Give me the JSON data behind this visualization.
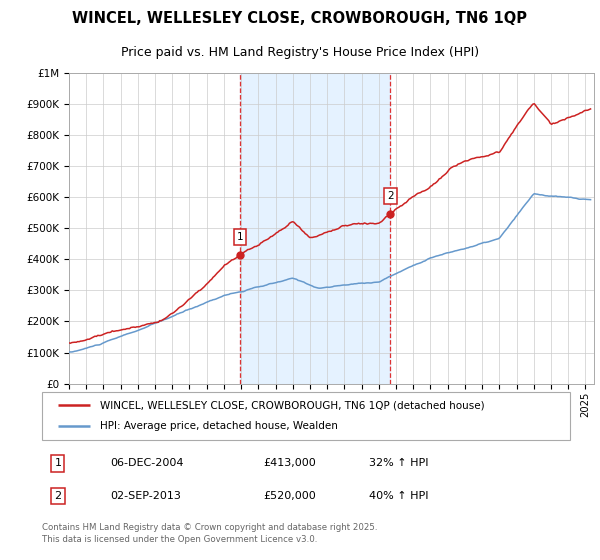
{
  "title_line1": "WINCEL, WELLESLEY CLOSE, CROWBOROUGH, TN6 1QP",
  "title_line2": "Price paid vs. HM Land Registry's House Price Index (HPI)",
  "ylim": [
    0,
    1000000
  ],
  "yticks": [
    0,
    100000,
    200000,
    300000,
    400000,
    500000,
    600000,
    700000,
    800000,
    900000,
    1000000
  ],
  "ytick_labels": [
    "£0",
    "£100K",
    "£200K",
    "£300K",
    "£400K",
    "£500K",
    "£600K",
    "£700K",
    "£800K",
    "£900K",
    "£1M"
  ],
  "xlim_start": 1995.0,
  "xlim_end": 2025.5,
  "hpi_color": "#6699cc",
  "price_color": "#cc2222",
  "vline_color": "#dd3333",
  "shade_color": "#ddeeff",
  "legend_label_price": "WINCEL, WELLESLEY CLOSE, CROWBOROUGH, TN6 1QP (detached house)",
  "legend_label_hpi": "HPI: Average price, detached house, Wealden",
  "sale1_date": "06-DEC-2004",
  "sale1_price": 413000,
  "sale1_pct": "32%",
  "sale1_year": 2004.92,
  "sale2_date": "02-SEP-2013",
  "sale2_price": 520000,
  "sale2_pct": "40%",
  "sale2_year": 2013.67,
  "footnote": "Contains HM Land Registry data © Crown copyright and database right 2025.\nThis data is licensed under the Open Government Licence v3.0.",
  "grid_color": "#cccccc",
  "label_box_color": "#cc2222"
}
